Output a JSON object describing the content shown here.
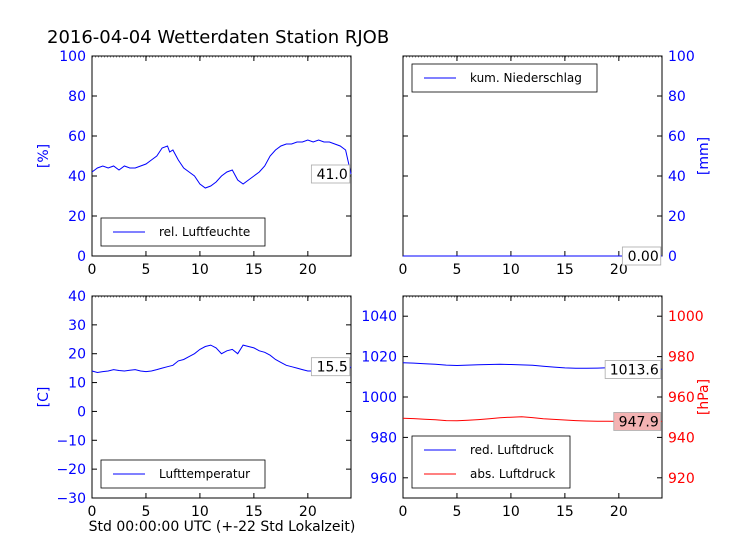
{
  "title": "2016-04-04 Wetterdaten Station RJOB",
  "bottom_xlabel": "Std 00:00:00 UTC (+-22 Std Lokalzeit)",
  "colors": {
    "blue": "#0000ff",
    "red": "#ff0000",
    "current_box_red": "#f4b3b3"
  },
  "chart_data": [
    {
      "type": "line",
      "ylabel": "[%]",
      "xlim": [
        0,
        24
      ],
      "ylim": [
        0,
        100
      ],
      "xticks": [
        "0",
        "5",
        "10",
        "15",
        "20"
      ],
      "yticks": [
        "0",
        "20",
        "40",
        "60",
        "80",
        "100"
      ],
      "legend": "lower-left",
      "series": [
        {
          "name": "rel. Luftfeuchte",
          "color": "#0000ff",
          "x": [
            0,
            0.5,
            1,
            1.5,
            2,
            2.5,
            3,
            3.5,
            4,
            4.5,
            5,
            5.5,
            6,
            6.5,
            7,
            7.2,
            7.5,
            8,
            8.5,
            9,
            9.5,
            10,
            10.5,
            11,
            11.5,
            12,
            12.5,
            13,
            13.5,
            14,
            14.5,
            15,
            15.5,
            16,
            16.5,
            17,
            17.5,
            18,
            18.5,
            19,
            19.5,
            20,
            20.5,
            21,
            21.5,
            22,
            22.5,
            23,
            23.5,
            24
          ],
          "y": [
            42,
            44,
            45,
            44,
            45,
            43,
            45,
            44,
            44,
            45,
            46,
            48,
            50,
            54,
            55,
            52,
            53,
            48,
            44,
            42,
            40,
            36,
            34,
            35,
            37,
            40,
            42,
            43,
            38,
            36,
            38,
            40,
            42,
            45,
            50,
            53,
            55,
            56,
            56,
            57,
            57,
            58,
            57,
            58,
            57,
            57,
            56,
            55,
            53,
            41
          ]
        }
      ],
      "current_value": "41.0"
    },
    {
      "type": "line",
      "ylabel": "[mm]",
      "xlim": [
        0,
        24
      ],
      "ylim": [
        0,
        100
      ],
      "xticks": [
        "0",
        "5",
        "10",
        "15",
        "20"
      ],
      "yticks": [
        "0",
        "20",
        "40",
        "60",
        "80",
        "100"
      ],
      "legend": "top-left",
      "series": [
        {
          "name": "kum. Niederschlag",
          "color": "#0000ff",
          "x": [
            0,
            24
          ],
          "y": [
            0,
            0
          ]
        }
      ],
      "current_value": "0.00"
    },
    {
      "type": "line",
      "ylabel": "[C]",
      "xlim": [
        0,
        24
      ],
      "ylim": [
        -30,
        40
      ],
      "xticks": [
        "0",
        "5",
        "10",
        "15",
        "20"
      ],
      "yticks": [
        "−30",
        "−20",
        "−10",
        "0",
        "10",
        "20",
        "30",
        "40"
      ],
      "legend": "lower-left",
      "series": [
        {
          "name": "Lufttemperatur",
          "color": "#0000ff",
          "x": [
            0,
            0.5,
            1,
            1.5,
            2,
            2.5,
            3,
            3.5,
            4,
            4.5,
            5,
            5.5,
            6,
            6.5,
            7,
            7.5,
            8,
            8.5,
            9,
            9.5,
            10,
            10.5,
            11,
            11.5,
            12,
            12.5,
            13,
            13.5,
            14,
            14.5,
            15,
            15.5,
            16,
            16.5,
            17,
            17.5,
            18,
            18.5,
            19,
            19.5,
            20,
            20.5,
            21,
            21.5,
            22,
            22.5,
            23,
            23.5,
            24
          ],
          "y": [
            14,
            13.5,
            13.8,
            14,
            14.5,
            14.2,
            14,
            14.3,
            14.5,
            14,
            13.8,
            14,
            14.5,
            15,
            15.5,
            16,
            17.5,
            18,
            19,
            20,
            21.5,
            22.5,
            23,
            22,
            20,
            21,
            21.5,
            20,
            23,
            22.5,
            22,
            21,
            20.5,
            19.5,
            18,
            17,
            16,
            15.5,
            15,
            14.5,
            14,
            14,
            13.8,
            13.5,
            13.5,
            13.2,
            13,
            13.5,
            15.5
          ]
        }
      ],
      "current_value": "15.5"
    },
    {
      "type": "line",
      "ylabel": "[hPa]",
      "xlim": [
        0,
        24
      ],
      "ylim_left": [
        950,
        1050
      ],
      "ylim_right": [
        910,
        1010
      ],
      "xticks": [
        "0",
        "5",
        "10",
        "15",
        "20"
      ],
      "yticks_left": [
        "960",
        "980",
        "1000",
        "1020",
        "1040"
      ],
      "yticks_right": [
        "920",
        "940",
        "960",
        "980",
        "1000"
      ],
      "legend": "lower-left",
      "series": [
        {
          "name": "red. Luftdruck",
          "color": "#0000ff",
          "axis": "left",
          "x": [
            0,
            1,
            2,
            3,
            4,
            5,
            6,
            7,
            8,
            9,
            10,
            11,
            12,
            13,
            14,
            15,
            16,
            17,
            18,
            19,
            20,
            21,
            22,
            23,
            24
          ],
          "y": [
            1017,
            1016.8,
            1016.5,
            1016.2,
            1015.8,
            1015.6,
            1015.8,
            1016,
            1016.1,
            1016.2,
            1016.1,
            1015.9,
            1015.7,
            1015.2,
            1014.8,
            1014.4,
            1014.2,
            1014.2,
            1014.3,
            1014.5,
            1014.6,
            1014.8,
            1015,
            1015.2,
            1013.6
          ]
        },
        {
          "name": "abs. Luftdruck",
          "color": "#ff0000",
          "axis": "right",
          "x": [
            0,
            1,
            2,
            3,
            4,
            5,
            6,
            7,
            8,
            9,
            10,
            11,
            12,
            13,
            14,
            15,
            16,
            17,
            18,
            19,
            20,
            21,
            22,
            23,
            24
          ],
          "y": [
            949.5,
            949.3,
            949,
            948.7,
            948.3,
            948.2,
            948.5,
            948.8,
            949.2,
            949.7,
            950,
            950.2,
            949.8,
            949.2,
            948.9,
            948.6,
            948.3,
            948.1,
            948,
            948,
            947.9,
            947.9,
            948,
            947.9,
            947.9
          ]
        }
      ],
      "current_value_left": "1013.6",
      "current_value_right": "947.9"
    }
  ]
}
